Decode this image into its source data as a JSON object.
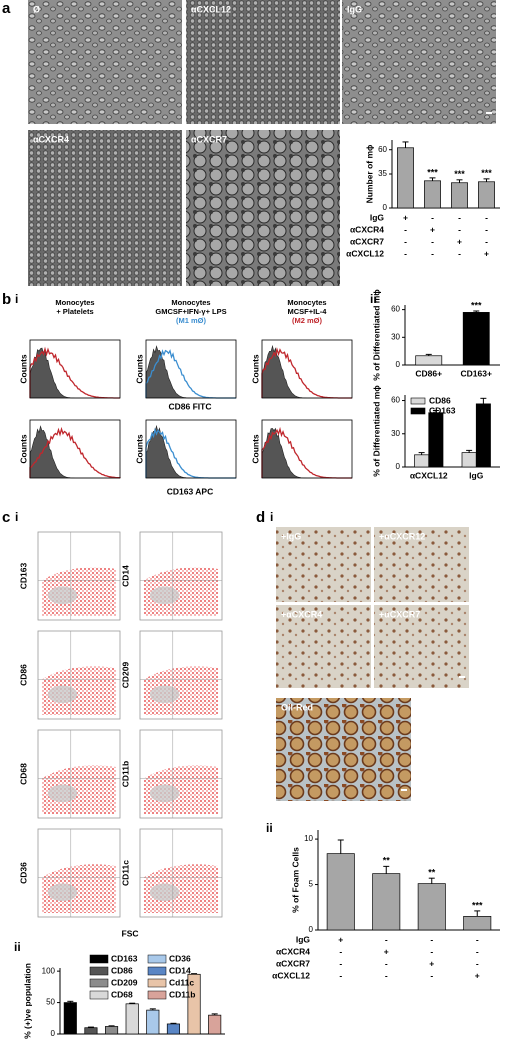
{
  "panel_a": {
    "label": "a",
    "images": [
      "Ø",
      "αCXCL12",
      "IgG",
      "αCXCR4",
      "αCXCR7"
    ],
    "chart": {
      "y_label": "Number of mϕ",
      "ylim": [
        0,
        70
      ],
      "yticks": [
        0,
        35,
        60
      ],
      "values": [
        62,
        28,
        26,
        27
      ],
      "errors": [
        6,
        3,
        3,
        3
      ],
      "significance": [
        null,
        "***",
        "***",
        "***"
      ],
      "color": "#a6a6a6",
      "conditions": [
        {
          "name": "IgG",
          "signs": [
            "+",
            "-",
            "-",
            "-"
          ]
        },
        {
          "name": "αCXCR4",
          "signs": [
            "-",
            "+",
            "-",
            "-"
          ]
        },
        {
          "name": "αCXCR7",
          "signs": [
            "-",
            "-",
            "+",
            "-"
          ]
        },
        {
          "name": "αCXCL12",
          "signs": [
            "-",
            "-",
            "-",
            "+"
          ]
        }
      ]
    }
  },
  "panel_b": {
    "label": "b",
    "sub_labels": [
      "i",
      "ii"
    ],
    "histograms": {
      "y_label": "Counts",
      "x_labels": [
        "CD86 FITC",
        "CD163 APC"
      ],
      "columns": [
        {
          "lines": [
            "Monocytes",
            "+ Platelets"
          ],
          "color": "#c0272d"
        },
        {
          "lines": [
            "Monocytes",
            "GMCSF+IFN-γ+ LPS",
            "(M1 mØ)"
          ],
          "color": "#3b8ed0"
        },
        {
          "lines": [
            "Monocytes",
            "MCSF+IL-4",
            "(M2 mØ)"
          ],
          "color": "#c0272d"
        }
      ]
    },
    "chart_top": {
      "y_label": "% of Differentiated mϕ",
      "ylim": [
        0,
        65
      ],
      "yticks": [
        0,
        30,
        60
      ],
      "categories": [
        "CD86+",
        "CD163+"
      ],
      "values": [
        10,
        57
      ],
      "errors": [
        1.5,
        1.5
      ],
      "colors": [
        "#d9d9d9",
        "#000000"
      ],
      "significance": [
        null,
        "***"
      ]
    },
    "chart_bottom": {
      "y_label": "% of Differentiated mϕ",
      "ylim": [
        0,
        65
      ],
      "yticks": [
        0,
        30,
        60
      ],
      "categories": [
        "αCXCL12",
        "IgG"
      ],
      "series": [
        {
          "name": "CD86",
          "color": "#d9d9d9",
          "values": [
            11,
            13
          ],
          "errors": [
            2,
            2
          ]
        },
        {
          "name": "CD163",
          "color": "#000000",
          "values": [
            49,
            57
          ],
          "errors": [
            2,
            5
          ]
        }
      ]
    }
  },
  "panel_c": {
    "label": "c",
    "sub_labels": [
      "i",
      "ii"
    ],
    "scatter_labels": [
      "CD163",
      "CD14",
      "CD86",
      "CD209",
      "CD68",
      "CD11b",
      "CD36",
      "CD11c"
    ],
    "x_label": "FSC",
    "chart": {
      "y_label": "% (+)ve population",
      "ylim": [
        0,
        105
      ],
      "yticks": [
        0,
        50,
        100
      ],
      "categories": [
        "CD163",
        "CD86",
        "CD209",
        "CD68",
        "CD36",
        "CD14",
        "Cd11c",
        "CD11b"
      ],
      "values": [
        50,
        10,
        12,
        48,
        38,
        16,
        95,
        30
      ],
      "errors": [
        2,
        1,
        1,
        1,
        2,
        1,
        1,
        2
      ],
      "colors": [
        "#000000",
        "#555555",
        "#8c8c8c",
        "#d9d9d9",
        "#a9c9ea",
        "#5a86c5",
        "#e8c4a8",
        "#d8a39a"
      ]
    }
  },
  "panel_d": {
    "label": "d",
    "sub_labels": [
      "i",
      "ii"
    ],
    "images": [
      "+IgG",
      "+αCXCR12",
      "+αCXCR4",
      "+αCXCR7",
      "Oil-Red"
    ],
    "chart": {
      "y_label": "% of Foam Cells",
      "ylim": [
        0,
        11
      ],
      "yticks": [
        0,
        5,
        10
      ],
      "values": [
        8.4,
        6.2,
        5.1,
        1.5
      ],
      "errors": [
        1.5,
        0.8,
        0.6,
        0.6
      ],
      "significance": [
        null,
        "**",
        "**",
        "***"
      ],
      "color": "#a6a6a6",
      "conditions": [
        {
          "name": "IgG",
          "signs": [
            "+",
            "-",
            "-",
            "-"
          ]
        },
        {
          "name": "αCXCR4",
          "signs": [
            "-",
            "+",
            "-",
            "-"
          ]
        },
        {
          "name": "αCXCR7",
          "signs": [
            "-",
            "-",
            "+",
            "-"
          ]
        },
        {
          "name": "αCXCL12",
          "signs": [
            "-",
            "-",
            "-",
            "+"
          ]
        }
      ]
    }
  }
}
